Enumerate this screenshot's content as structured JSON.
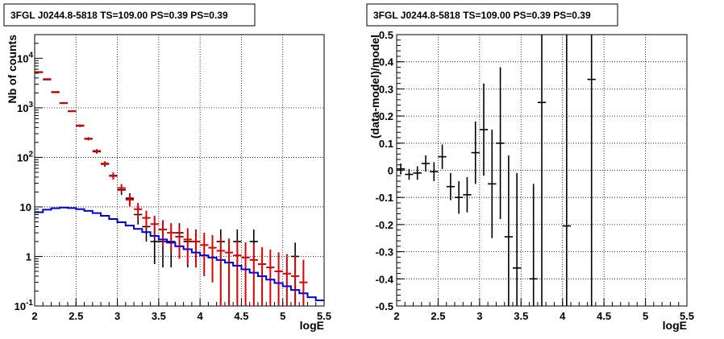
{
  "colors": {
    "data": "#000000",
    "model_total": "#e00000",
    "model_source": "#0000dd",
    "grid": "#000000"
  },
  "chart_data": [
    {
      "type": "scatter",
      "title": "3FGL J0244.8-5818 TS=109.00 PS=0.39 PS=0.39",
      "xlabel": "logE",
      "ylabel": "Nb of counts",
      "xlim": [
        2,
        5.5
      ],
      "ylim": [
        0.1,
        30000
      ],
      "yscale": "log",
      "grid": true,
      "x_ticks": [
        "2",
        "2.5",
        "3",
        "3.5",
        "4",
        "4.5",
        "5",
        "5.5"
      ],
      "y_ticks": [
        {
          "label": "10",
          "sup": "-1",
          "value": 0.1
        },
        {
          "label": "1",
          "sup": "",
          "value": 1
        },
        {
          "label": "10",
          "sup": "",
          "value": 10
        },
        {
          "label": "10",
          "sup": "2",
          "value": 100
        },
        {
          "label": "10",
          "sup": "3",
          "value": 1000
        },
        {
          "label": "10",
          "sup": "4",
          "value": 10000
        }
      ],
      "bin_width": 0.1,
      "series": [
        {
          "role": "data",
          "x": [
            2.05,
            2.15,
            2.25,
            2.35,
            2.45,
            2.55,
            2.65,
            2.75,
            2.85,
            2.95,
            3.05,
            3.15,
            3.25,
            3.35,
            3.45,
            3.55,
            3.65,
            3.75,
            3.85,
            3.95,
            4.25,
            4.45,
            4.65,
            5.15
          ],
          "y": [
            5300,
            3700,
            2100,
            1260,
            860,
            430,
            240,
            130,
            73,
            43,
            22,
            15,
            7,
            4,
            2,
            2,
            2,
            3,
            2,
            2,
            2,
            2,
            2,
            1
          ],
          "err_low": [
            75,
            60,
            45,
            35,
            29,
            20,
            15,
            11,
            8.5,
            6.5,
            4.7,
            3.9,
            2.6,
            2.0,
            1.3,
            1.4,
            1.4,
            1.7,
            1.4,
            1.4,
            1.4,
            1.4,
            1.4,
            0.9
          ],
          "err_high": [
            75,
            60,
            45,
            35,
            29,
            20,
            15,
            11,
            8.5,
            6.5,
            4.7,
            3.9,
            2.6,
            2.0,
            1.3,
            1.5,
            1.5,
            1.7,
            1.5,
            1.5,
            1.5,
            1.5,
            1.5,
            0.9
          ]
        },
        {
          "role": "model_total",
          "x": [
            2.05,
            2.15,
            2.25,
            2.35,
            2.45,
            2.55,
            2.65,
            2.75,
            2.85,
            2.95,
            3.05,
            3.15,
            3.25,
            3.35,
            3.45,
            3.55,
            3.65,
            3.75,
            3.85,
            3.95,
            4.05,
            4.15,
            4.25,
            4.35,
            4.45,
            4.55,
            4.65,
            4.75,
            4.85,
            4.95,
            5.05,
            5.15,
            5.25
          ],
          "y": [
            5200,
            3800,
            2050,
            1240,
            850,
            440,
            235,
            135,
            75,
            42,
            24,
            14,
            9,
            6,
            4.5,
            3.5,
            3,
            2.5,
            2.2,
            2,
            1.7,
            1.5,
            1.3,
            1.2,
            1.05,
            0.95,
            0.85,
            0.7,
            0.6,
            0.5,
            0.45,
            0.4,
            0.3
          ],
          "err_low": [
            72,
            62,
            45,
            35,
            29,
            21,
            15,
            11,
            8.6,
            6.4,
            4.9,
            3.7,
            3.0,
            2.4,
            2.1,
            1.9,
            1.7,
            1.6,
            1.5,
            1.4,
            1.3,
            1.2,
            1.2,
            1.1,
            1.0,
            0.97,
            0.92,
            0.6,
            0.5,
            0.42,
            0.37,
            0.32,
            0.24
          ],
          "err_high": [
            72,
            62,
            45,
            35,
            29,
            21,
            15,
            11,
            8.6,
            6.4,
            4.9,
            3.7,
            3.0,
            2.4,
            2.1,
            1.9,
            1.7,
            1.6,
            1.5,
            1.4,
            1.3,
            1.2,
            1.2,
            1.1,
            1.0,
            0.97,
            0.92,
            0.84,
            0.77,
            0.71,
            0.67,
            0.63,
            0.55
          ]
        },
        {
          "role": "model_source",
          "type": "step",
          "x": [
            2.05,
            2.15,
            2.25,
            2.35,
            2.45,
            2.55,
            2.65,
            2.75,
            2.85,
            2.95,
            3.05,
            3.15,
            3.25,
            3.35,
            3.45,
            3.55,
            3.65,
            3.75,
            3.85,
            3.95,
            4.05,
            4.15,
            4.25,
            4.35,
            4.45,
            4.55,
            4.65,
            4.75,
            4.85,
            4.95,
            5.05,
            5.15,
            5.25,
            5.35,
            5.45
          ],
          "y": [
            7.8,
            8.8,
            9.4,
            9.7,
            9.5,
            9.0,
            8.3,
            7.5,
            6.6,
            5.7,
            4.9,
            4.2,
            3.6,
            3.1,
            2.6,
            2.2,
            1.9,
            1.6,
            1.4,
            1.2,
            1.05,
            0.95,
            0.85,
            0.75,
            0.65,
            0.55,
            0.47,
            0.4,
            0.34,
            0.29,
            0.25,
            0.21,
            0.18,
            0.15,
            0.13
          ]
        }
      ]
    },
    {
      "type": "scatter",
      "title": "3FGL J0244.8-5818 TS=109.00 PS=0.39 PS=0.39",
      "xlabel": "logE",
      "ylabel": "(data-model)/model",
      "xlim": [
        2,
        5.5
      ],
      "ylim": [
        -0.5,
        0.5
      ],
      "grid": true,
      "x_ticks": [
        "2",
        "2.5",
        "3",
        "3.5",
        "4",
        "4.5",
        "5",
        "5.5"
      ],
      "y_ticks": [
        "-0.5",
        "-0.4",
        "-0.3",
        "-0.2",
        "-0.1",
        "0",
        "0.1",
        "0.2",
        "0.3",
        "0.4",
        "0.5"
      ],
      "bin_width": 0.1,
      "series": [
        {
          "role": "residuals",
          "x": [
            2.05,
            2.15,
            2.25,
            2.35,
            2.45,
            2.55,
            2.65,
            2.75,
            2.85,
            2.95,
            3.05,
            3.15,
            3.25,
            3.35,
            3.45,
            3.65,
            3.75,
            4.05,
            4.35
          ],
          "y": [
            0.005,
            -0.015,
            -0.01,
            0.025,
            -0.005,
            0.05,
            -0.06,
            -0.1,
            -0.09,
            0.065,
            0.15,
            -0.05,
            0.1,
            -0.245,
            -0.36,
            -0.4,
            0.25,
            -0.205,
            0.335
          ],
          "err_low": [
            0.02,
            0.02,
            0.025,
            0.03,
            0.035,
            0.045,
            0.05,
            0.06,
            0.065,
            0.115,
            0.17,
            0.2,
            0.28,
            0.3,
            0.35,
            0.35,
            0.75,
            0.8,
            0.85
          ],
          "err_high": [
            0.02,
            0.02,
            0.025,
            0.03,
            0.035,
            0.045,
            0.05,
            0.06,
            0.065,
            0.115,
            0.17,
            0.2,
            0.28,
            0.3,
            0.35,
            0.35,
            0.75,
            0.8,
            0.85
          ]
        }
      ]
    }
  ]
}
